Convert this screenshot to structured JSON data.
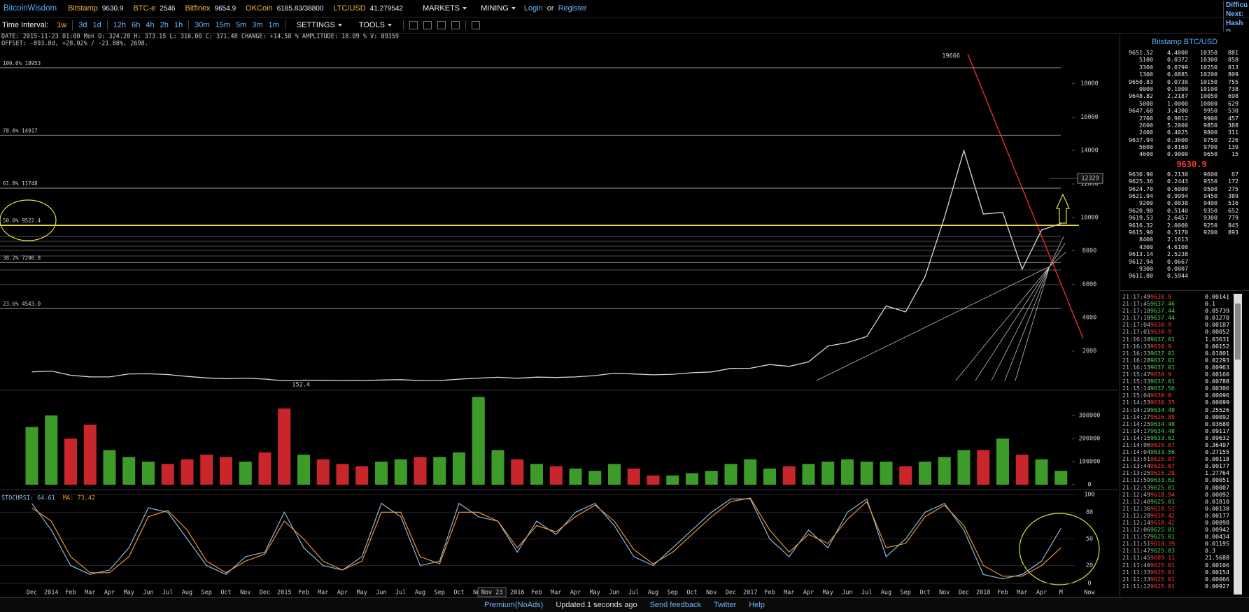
{
  "header": {
    "logo": "BitcoinWisdom",
    "tickers": [
      {
        "exchange": "Bitstamp",
        "price": "9630.9"
      },
      {
        "exchange": "BTC-e",
        "price": "2546"
      },
      {
        "exchange": "Bitfinex",
        "price": "9654.9"
      },
      {
        "exchange": "OKCoin",
        "price": "6185.83/38800"
      },
      {
        "exchange": "LTC/USD",
        "price": "41.279542"
      }
    ],
    "menus": [
      "MARKETS",
      "MINING"
    ],
    "login": "Login",
    "or": "or",
    "register": "Register",
    "side_info": [
      "Difficu",
      "Next:",
      "Hash R"
    ]
  },
  "toolbar": {
    "label": "Time Interval:",
    "intervals": [
      "1w",
      "3d",
      "1d",
      "12h",
      "6h",
      "4h",
      "2h",
      "1h",
      "30m",
      "15m",
      "5m",
      "3m",
      "1m"
    ],
    "settings": "SETTINGS",
    "tools": "TOOLS"
  },
  "chart_data": {
    "type": "line",
    "info": "DATE: 2015-11-23 01:00 Mon   O: 324.20   H: 373.15   L: 316.00   C: 371.48   CHANGE: +14.58 %   AMPLITUDE: 18.09 %   V: 89359",
    "offset": "OFFSET: -893.8d, +28.02% / -21.88%, 2698.",
    "categories": [
      "Dec",
      "2014",
      "Feb",
      "Mar",
      "Apr",
      "May",
      "Jun",
      "Jul",
      "Aug",
      "Sep",
      "Oct",
      "Nov",
      "Dec",
      "2015",
      "Feb",
      "Mar",
      "Apr",
      "May",
      "Jun",
      "Jul",
      "Aug",
      "Sep",
      "Oct",
      "Nov",
      null,
      "2016",
      "Feb",
      "Mar",
      "Apr",
      "May",
      "Jun",
      "Jul",
      "Aug",
      "Sep",
      "Oct",
      "Nov",
      "Dec",
      "2017",
      "Feb",
      "Mar",
      "Apr",
      "May",
      "Jun",
      "Jul",
      "Aug",
      "Sep",
      "Oct",
      "Nov",
      "Dec",
      "2018",
      "Feb",
      "Mar",
      "Apr",
      "M"
    ],
    "values": [
      750,
      800,
      550,
      450,
      450,
      630,
      640,
      590,
      480,
      390,
      340,
      380,
      320,
      220,
      255,
      245,
      235,
      230,
      265,
      285,
      230,
      236,
      315,
      378,
      430,
      370,
      435,
      415,
      450,
      530,
      670,
      625,
      575,
      610,
      700,
      745,
      960,
      970,
      1190,
      1080,
      1350,
      2300,
      2500,
      2870,
      4700,
      4340,
      6450,
      10000,
      14000,
      10200,
      10300,
      6900,
      9240,
      9630
    ],
    "color": "#d8d8d8",
    "ylim": [
      -350,
      21000
    ],
    "yticks": [
      2000,
      4000,
      6000,
      8000,
      10000,
      12000,
      14000,
      16000,
      18000
    ],
    "fib_levels": [
      {
        "label": "100.0% 18953",
        "value": 18953,
        "color": "#9a9a9a"
      },
      {
        "label": "78.6% 14917",
        "value": 14917,
        "color": "#9a9a9a"
      },
      {
        "label": "61.8% 11748",
        "value": 11748,
        "color": "#9a9a9a"
      },
      {
        "label": "50.0% 9522.4",
        "value": 9522.4,
        "color": "#e6e23a"
      },
      {
        "label": "38.2% 7296.8",
        "value": 7296.8,
        "color": "#9a9a9a"
      },
      {
        "label": "23.6% 4543.0",
        "value": 4543,
        "color": "#9a9a9a"
      }
    ],
    "high_label": 19666,
    "low_label": 152.4,
    "cursor_price": 12329,
    "cursor_date": "Nov 23",
    "now_label": "Now",
    "volume": {
      "values": [
        250000,
        300000,
        200000,
        260000,
        150000,
        120000,
        100000,
        90000,
        110000,
        130000,
        120000,
        100000,
        140000,
        330000,
        130000,
        110000,
        90000,
        80000,
        100000,
        110000,
        120000,
        120000,
        140000,
        380000,
        150000,
        110000,
        90000,
        80000,
        70000,
        60000,
        90000,
        70000,
        40000,
        40000,
        50000,
        60000,
        90000,
        110000,
        70000,
        80000,
        90000,
        100000,
        110000,
        100000,
        100000,
        80000,
        100000,
        120000,
        150000,
        150000,
        200000,
        130000,
        110000,
        60000
      ],
      "ylim": [
        0,
        409000
      ],
      "yticks": [
        0,
        100000,
        200000,
        300000
      ],
      "up_color": "#3d9b2a",
      "down_color": "#c9262b"
    },
    "stochrsi": {
      "label": "STOCHRSI: 64.61",
      "ma_label": "MA: 73.42",
      "series": [
        {
          "color": "#8cb6e6",
          "values": [
            90,
            60,
            20,
            10,
            15,
            40,
            85,
            80,
            50,
            20,
            10,
            30,
            35,
            80,
            40,
            20,
            15,
            30,
            90,
            75,
            20,
            25,
            90,
            75,
            70,
            35,
            70,
            55,
            80,
            90,
            65,
            30,
            20,
            40,
            60,
            80,
            95,
            95,
            50,
            30,
            60,
            40,
            80,
            95,
            30,
            50,
            80,
            90,
            60,
            10,
            5,
            10,
            25,
            62
          ]
        },
        {
          "color": "#e8962a",
          "values": [
            85,
            70,
            30,
            12,
            12,
            30,
            75,
            82,
            60,
            25,
            12,
            25,
            33,
            70,
            50,
            25,
            15,
            25,
            80,
            80,
            30,
            22,
            80,
            80,
            70,
            40,
            65,
            58,
            75,
            88,
            70,
            38,
            22,
            35,
            55,
            75,
            92,
            96,
            60,
            35,
            55,
            45,
            72,
            92,
            40,
            45,
            75,
            88,
            65,
            20,
            8,
            8,
            20,
            40
          ]
        }
      ],
      "ylim": [
        0,
        100
      ],
      "yticks": [
        0,
        20,
        50,
        80,
        100
      ]
    }
  },
  "order_book": {
    "title": "Bitstamp BTC/USD",
    "asks": [
      [
        "9651.52",
        "4.4000",
        "10350",
        "881"
      ],
      [
        "5100",
        "0.0372",
        "10300",
        "858"
      ],
      [
        "3300",
        "0.0799",
        "10250",
        "813"
      ],
      [
        "1300",
        "0.0885",
        "10200",
        "809"
      ],
      [
        "9650.83",
        "0.0730",
        "10150",
        "755"
      ],
      [
        "0000",
        "0.1000",
        "10100",
        "738"
      ],
      [
        "9648.82",
        "2.2187",
        "10050",
        "698"
      ],
      [
        "5000",
        "1.0000",
        "10000",
        "629"
      ],
      [
        "9647.68",
        "3.4300",
        "9950",
        "530"
      ],
      [
        "2700",
        "0.9812",
        "9900",
        "457"
      ],
      [
        "2600",
        "5.2000",
        "9850",
        "388"
      ],
      [
        "2400",
        "0.4025",
        "9800",
        "311"
      ],
      [
        "9637.94",
        "0.3600",
        "9750",
        "226"
      ],
      [
        "5600",
        "0.8169",
        "9700",
        "139"
      ],
      [
        "4600",
        "0.9000",
        "9650",
        "15"
      ]
    ],
    "last": "9630.9",
    "bids": [
      [
        "9630.90",
        "0.2130",
        "9600",
        "67"
      ],
      [
        "9625.36",
        "0.2443",
        "9550",
        "172"
      ],
      [
        "9624.70",
        "0.6000",
        "9500",
        "275"
      ],
      [
        "9621.94",
        "0.9994",
        "9450",
        "389"
      ],
      [
        "9200",
        "0.0038",
        "9400",
        "516"
      ],
      [
        "9620.90",
        "0.5140",
        "9350",
        "652"
      ],
      [
        "9619.53",
        "2.6457",
        "9300",
        "779"
      ],
      [
        "9616.32",
        "2.0000",
        "9250",
        "845"
      ],
      [
        "9615.90",
        "0.5170",
        "9200",
        "893"
      ],
      [
        "8400",
        "2.1613"
      ],
      [
        "4300",
        "4.6108"
      ],
      [
        "9613.14",
        "2.5238"
      ],
      [
        "9612.94",
        "0.0667"
      ],
      [
        "9300",
        "0.0007"
      ],
      [
        "9611.80",
        "0.5944"
      ]
    ]
  },
  "trades": [
    {
      "time": "21:17:49",
      "price": "9630.9",
      "amount": "0.00141",
      "up": false
    },
    {
      "time": "21:17:45",
      "price": "9637.46",
      "amount": "0.1",
      "up": true
    },
    {
      "time": "21:17:18",
      "price": "9637.44",
      "amount": "0.05739",
      "up": true
    },
    {
      "time": "21:17:18",
      "price": "9637.44",
      "amount": "0.01270",
      "up": true
    },
    {
      "time": "21:17:04",
      "price": "9630.9",
      "amount": "0.00187",
      "up": false
    },
    {
      "time": "21:17:01",
      "price": "9630.9",
      "amount": "0.00052",
      "up": false
    },
    {
      "time": "21:16:38",
      "price": "9637.01",
      "amount": "1.03631",
      "up": true
    },
    {
      "time": "21:16:33",
      "price": "9630.9",
      "amount": "0.00152",
      "up": false
    },
    {
      "time": "21:16:33",
      "price": "9637.01",
      "amount": "0.01801",
      "up": true
    },
    {
      "time": "21:16:28",
      "price": "9637.01",
      "amount": "0.02293",
      "up": true
    },
    {
      "time": "21:16:13",
      "price": "9637.01",
      "amount": "0.00963",
      "up": true
    },
    {
      "time": "21:15:47",
      "price": "9630.9",
      "amount": "0.00160",
      "up": false
    },
    {
      "time": "21:15:33",
      "price": "9637.01",
      "amount": "0.00788",
      "up": true
    },
    {
      "time": "21:15:14",
      "price": "9637.56",
      "amount": "0.00306",
      "up": true
    },
    {
      "time": "21:15:04",
      "price": "9630.8",
      "amount": "0.00096",
      "up": false
    },
    {
      "time": "21:14:53",
      "price": "9630.35",
      "amount": "0.00099",
      "up": false
    },
    {
      "time": "21:14:29",
      "price": "9634.48",
      "amount": "0.25526",
      "up": true
    },
    {
      "time": "21:14:27",
      "price": "9626.89",
      "amount": "0.00092",
      "up": false
    },
    {
      "time": "21:14:25",
      "price": "9634.48",
      "amount": "0.03680",
      "up": true
    },
    {
      "time": "21:14:17",
      "price": "9634.48",
      "amount": "0.09117",
      "up": true
    },
    {
      "time": "21:14:15",
      "price": "9633.62",
      "amount": "0.09632",
      "up": true
    },
    {
      "time": "21:14:06",
      "price": "9625.07",
      "amount": "0.36407",
      "up": false
    },
    {
      "time": "21:14:04",
      "price": "9633.56",
      "amount": "0.27155",
      "up": true
    },
    {
      "time": "21:13:51",
      "price": "9625.07",
      "amount": "0.00118",
      "up": false
    },
    {
      "time": "21:13:44",
      "price": "9625.07",
      "amount": "0.00177",
      "up": false
    },
    {
      "time": "21:13:25",
      "price": "9625.28",
      "amount": "1.27764",
      "up": false
    },
    {
      "time": "21:12:59",
      "price": "9633.62",
      "amount": "0.00051",
      "up": true
    },
    {
      "time": "21:12:53",
      "price": "9625.01",
      "amount": "0.00007",
      "up": true
    },
    {
      "time": "21:12:49",
      "price": "9618.94",
      "amount": "0.00092",
      "up": false
    },
    {
      "time": "21:12:48",
      "price": "9625.01",
      "amount": "0.01810",
      "up": true
    },
    {
      "time": "21:12:36",
      "price": "9618.51",
      "amount": "0.00130",
      "up": false
    },
    {
      "time": "21:12:28",
      "price": "9618.42",
      "amount": "0.00177",
      "up": false
    },
    {
      "time": "21:12:14",
      "price": "9618.42",
      "amount": "0.00098",
      "up": false
    },
    {
      "time": "21:12:06",
      "price": "9625.01",
      "amount": "0.00942",
      "up": true
    },
    {
      "time": "21:11:57",
      "price": "9625.01",
      "amount": "0.00434",
      "up": true
    },
    {
      "time": "21:11:51",
      "price": "9618.39",
      "amount": "0.01195",
      "up": false
    },
    {
      "time": "21:11:47",
      "price": "9625.03",
      "amount": "0.3",
      "up": true
    },
    {
      "time": "21:11:45",
      "price": "9609.11",
      "amount": "21.5688",
      "up": false
    },
    {
      "time": "21:11:40",
      "price": "9625.01",
      "amount": "0.00106",
      "up": false
    },
    {
      "time": "21:11:33",
      "price": "9625.01",
      "amount": "0.00154",
      "up": false
    },
    {
      "time": "21:11:33",
      "price": "9625.01",
      "amount": "0.00066",
      "up": false
    },
    {
      "time": "21:11:12",
      "price": "9625.01",
      "amount": "0.00927",
      "up": false
    }
  ],
  "footer": [
    "Premium(NoAds)",
    "Updated 1 seconds ago",
    "Send feedback",
    "Twitter",
    "Help"
  ]
}
